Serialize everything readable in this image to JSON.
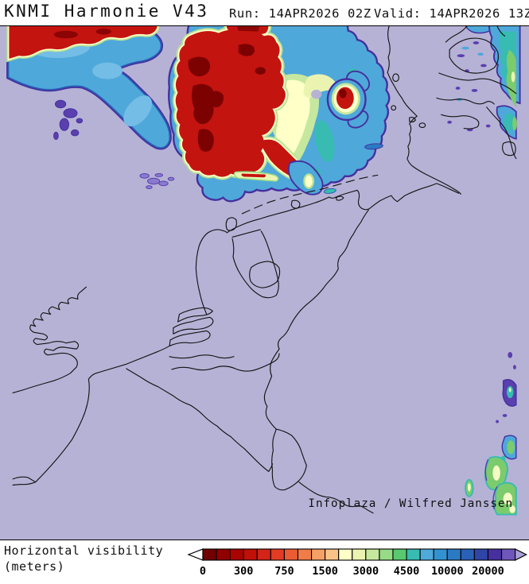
{
  "header": {
    "title": "KNMI Harmonie V43",
    "run": "Run: 14APR2026 02Z",
    "valid": "Valid: 14APR2026 13Z"
  },
  "map": {
    "attribution": "Infoplaza / Wilfred Janssen"
  },
  "legend": {
    "line1": "Horizontal visibility",
    "line2": "(meters)"
  },
  "chart_data": {
    "type": "heatmap",
    "title": "Horizontal visibility (meters)",
    "model": "KNMI Harmonie V43",
    "run_time": "14APR2026 02Z",
    "valid_time": "14APR2026 13Z",
    "attribution": "Infoplaza / Wilfred Janssen",
    "colorbar": {
      "tick_labels": [
        "0",
        "300",
        "750",
        "1500",
        "3000",
        "4500",
        "10000",
        "20000"
      ],
      "tick_cell_positions": [
        0,
        3,
        6,
        9,
        12,
        15,
        18,
        21
      ],
      "cell_colors": [
        "#700000",
        "#900000",
        "#aa0400",
        "#c01008",
        "#d22418",
        "#e23c24",
        "#ea5c34",
        "#f07c48",
        "#f5a066",
        "#f9c388",
        "#ffffc8",
        "#eaf4b0",
        "#c6e89e",
        "#96db86",
        "#58c96e",
        "#38bcb2",
        "#4faada",
        "#3292d0",
        "#2b7ac4",
        "#2a60b6",
        "#2f46a8",
        "#46309e",
        "#6e56ba"
      ],
      "underflow_color": "#ffffff",
      "overflow_color": "#a9a0d6"
    },
    "palette": {
      "background_clear": "#b6b2d6",
      "fog_red": "#c41410",
      "fog_dark_maroon": "#7c0202",
      "fringe_cream": "#ffffc8",
      "fringe_pale_green": "#c6e89e",
      "band_light_blue": "#4fa8da",
      "band_dark_blue": "#2a5eb4",
      "edge_purple": "#44309e",
      "patch_green": "#7ccb6d",
      "patch_teal": "#38bcb2"
    },
    "features": [
      {
        "area": "Top-left corner (northwest North Sea)",
        "visibility_m": "< 300 (dense fog)"
      },
      {
        "area": "Large patch over central North Sea north of the Wadden Islands",
        "visibility_m": "< 300 (dense fog), fringed 300-4500"
      },
      {
        "area": "Small round cell east of the main fog bank",
        "visibility_m": "< 300 (dense fog)"
      },
      {
        "area": "Diagonal band from top-left toward map centre",
        "visibility_m": "4500 - 10000"
      },
      {
        "area": "Danish / Baltic coast, top-right edge",
        "visibility_m": "3000 - 10000"
      },
      {
        "area": "Far right edge, centre and bottom-right patches",
        "visibility_m": "1500 - 10000"
      },
      {
        "area": "Land areas (England, France, Benelux, Germany, Denmark)",
        "visibility_m": "> 20000 (clear)"
      }
    ]
  }
}
